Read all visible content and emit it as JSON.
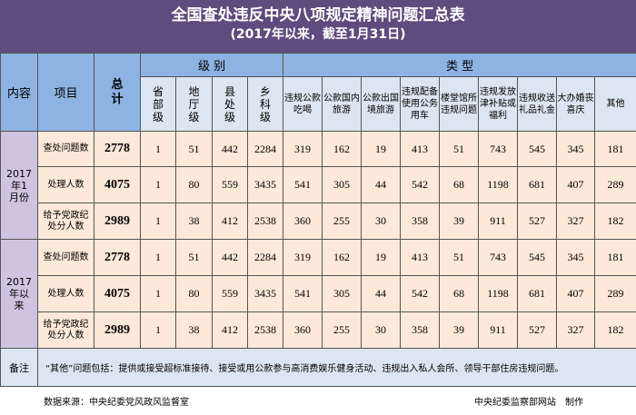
{
  "title": "全国查处违反中央八项规定精神问题汇总表",
  "subtitle": "(2017年以来，截至1月31日)",
  "headers": {
    "content": "内容",
    "item": "项目",
    "total": "总计",
    "level": "级 别",
    "type": "类 型",
    "levels": [
      "省部级",
      "地厅级",
      "县处级",
      "乡科级"
    ],
    "types": [
      "违规公款吃喝",
      "公款国内旅游",
      "公款出国境旅游",
      "违规配备使用公务用车",
      "楼堂馆所违规问题",
      "违规发放津补贴或福利",
      "违规收送礼品礼金",
      "大办婚丧喜庆",
      "其他"
    ]
  },
  "groups": [
    {
      "label": "2017年1月份",
      "rows": [
        {
          "item": "查处问题数",
          "total": "2778",
          "values": [
            "1",
            "51",
            "442",
            "2284",
            "319",
            "162",
            "19",
            "413",
            "51",
            "743",
            "545",
            "345",
            "181"
          ]
        },
        {
          "item": "处理人数",
          "total": "4075",
          "values": [
            "1",
            "80",
            "559",
            "3435",
            "541",
            "305",
            "44",
            "542",
            "68",
            "1198",
            "681",
            "407",
            "289"
          ]
        },
        {
          "item": "给予党政纪处分人数",
          "total": "2989",
          "values": [
            "1",
            "38",
            "412",
            "2538",
            "360",
            "255",
            "30",
            "358",
            "39",
            "911",
            "527",
            "327",
            "182"
          ]
        }
      ]
    },
    {
      "label": "2017年以来",
      "rows": [
        {
          "item": "查处问题数",
          "total": "2778",
          "values": [
            "1",
            "51",
            "442",
            "2284",
            "319",
            "162",
            "19",
            "413",
            "51",
            "743",
            "545",
            "345",
            "181"
          ]
        },
        {
          "item": "处理人数",
          "total": "4075",
          "values": [
            "1",
            "80",
            "559",
            "3435",
            "541",
            "305",
            "44",
            "542",
            "68",
            "1198",
            "681",
            "407",
            "289"
          ]
        },
        {
          "item": "给予党政纪处分人数",
          "total": "2989",
          "values": [
            "1",
            "38",
            "412",
            "2538",
            "360",
            "255",
            "30",
            "358",
            "39",
            "911",
            "527",
            "327",
            "182"
          ]
        }
      ]
    }
  ],
  "notes": {
    "label": "备注",
    "text": "“其他”问题包括：提供或接受超标准接待、接受或用公款参与高消费娱乐健身活动、违规出入私人会所、领导干部住房违规问题。"
  },
  "footer": {
    "source": "数据来源：中央纪委党风政风监督室",
    "maker": "中央纪委监察部网站　制作"
  },
  "colors": {
    "title_bg": "#5f4b7d",
    "header_bg": "#8db3e2",
    "data_bg": "#fde9d9",
    "group_bg": "#cfc4e0"
  }
}
